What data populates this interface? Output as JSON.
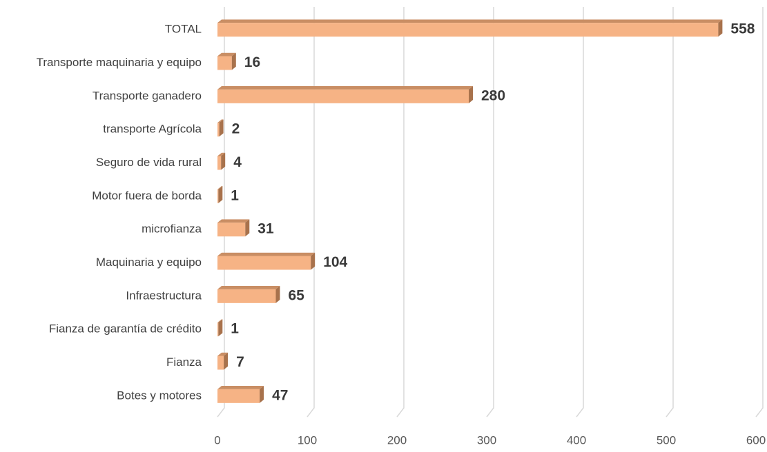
{
  "chart_data": {
    "type": "bar3d_horizontal",
    "categories": [
      "TOTAL",
      "Transporte maquinaria y equipo",
      "Transporte ganadero",
      "transporte Agrícola",
      "Seguro de vida rural ",
      "Motor fuera de borda",
      "microfianza",
      "Maquinaria y equipo",
      "Infraestructura",
      "Fianza de garantía de crédito",
      "Fianza",
      "Botes y motores"
    ],
    "values": [
      558,
      16,
      280,
      2,
      4,
      1,
      31,
      104,
      65,
      1,
      7,
      47
    ],
    "color": "#f6b385",
    "xlim": [
      0,
      600
    ],
    "xticks": [
      0,
      100,
      200,
      300,
      400,
      500,
      600
    ],
    "grid": true
  }
}
